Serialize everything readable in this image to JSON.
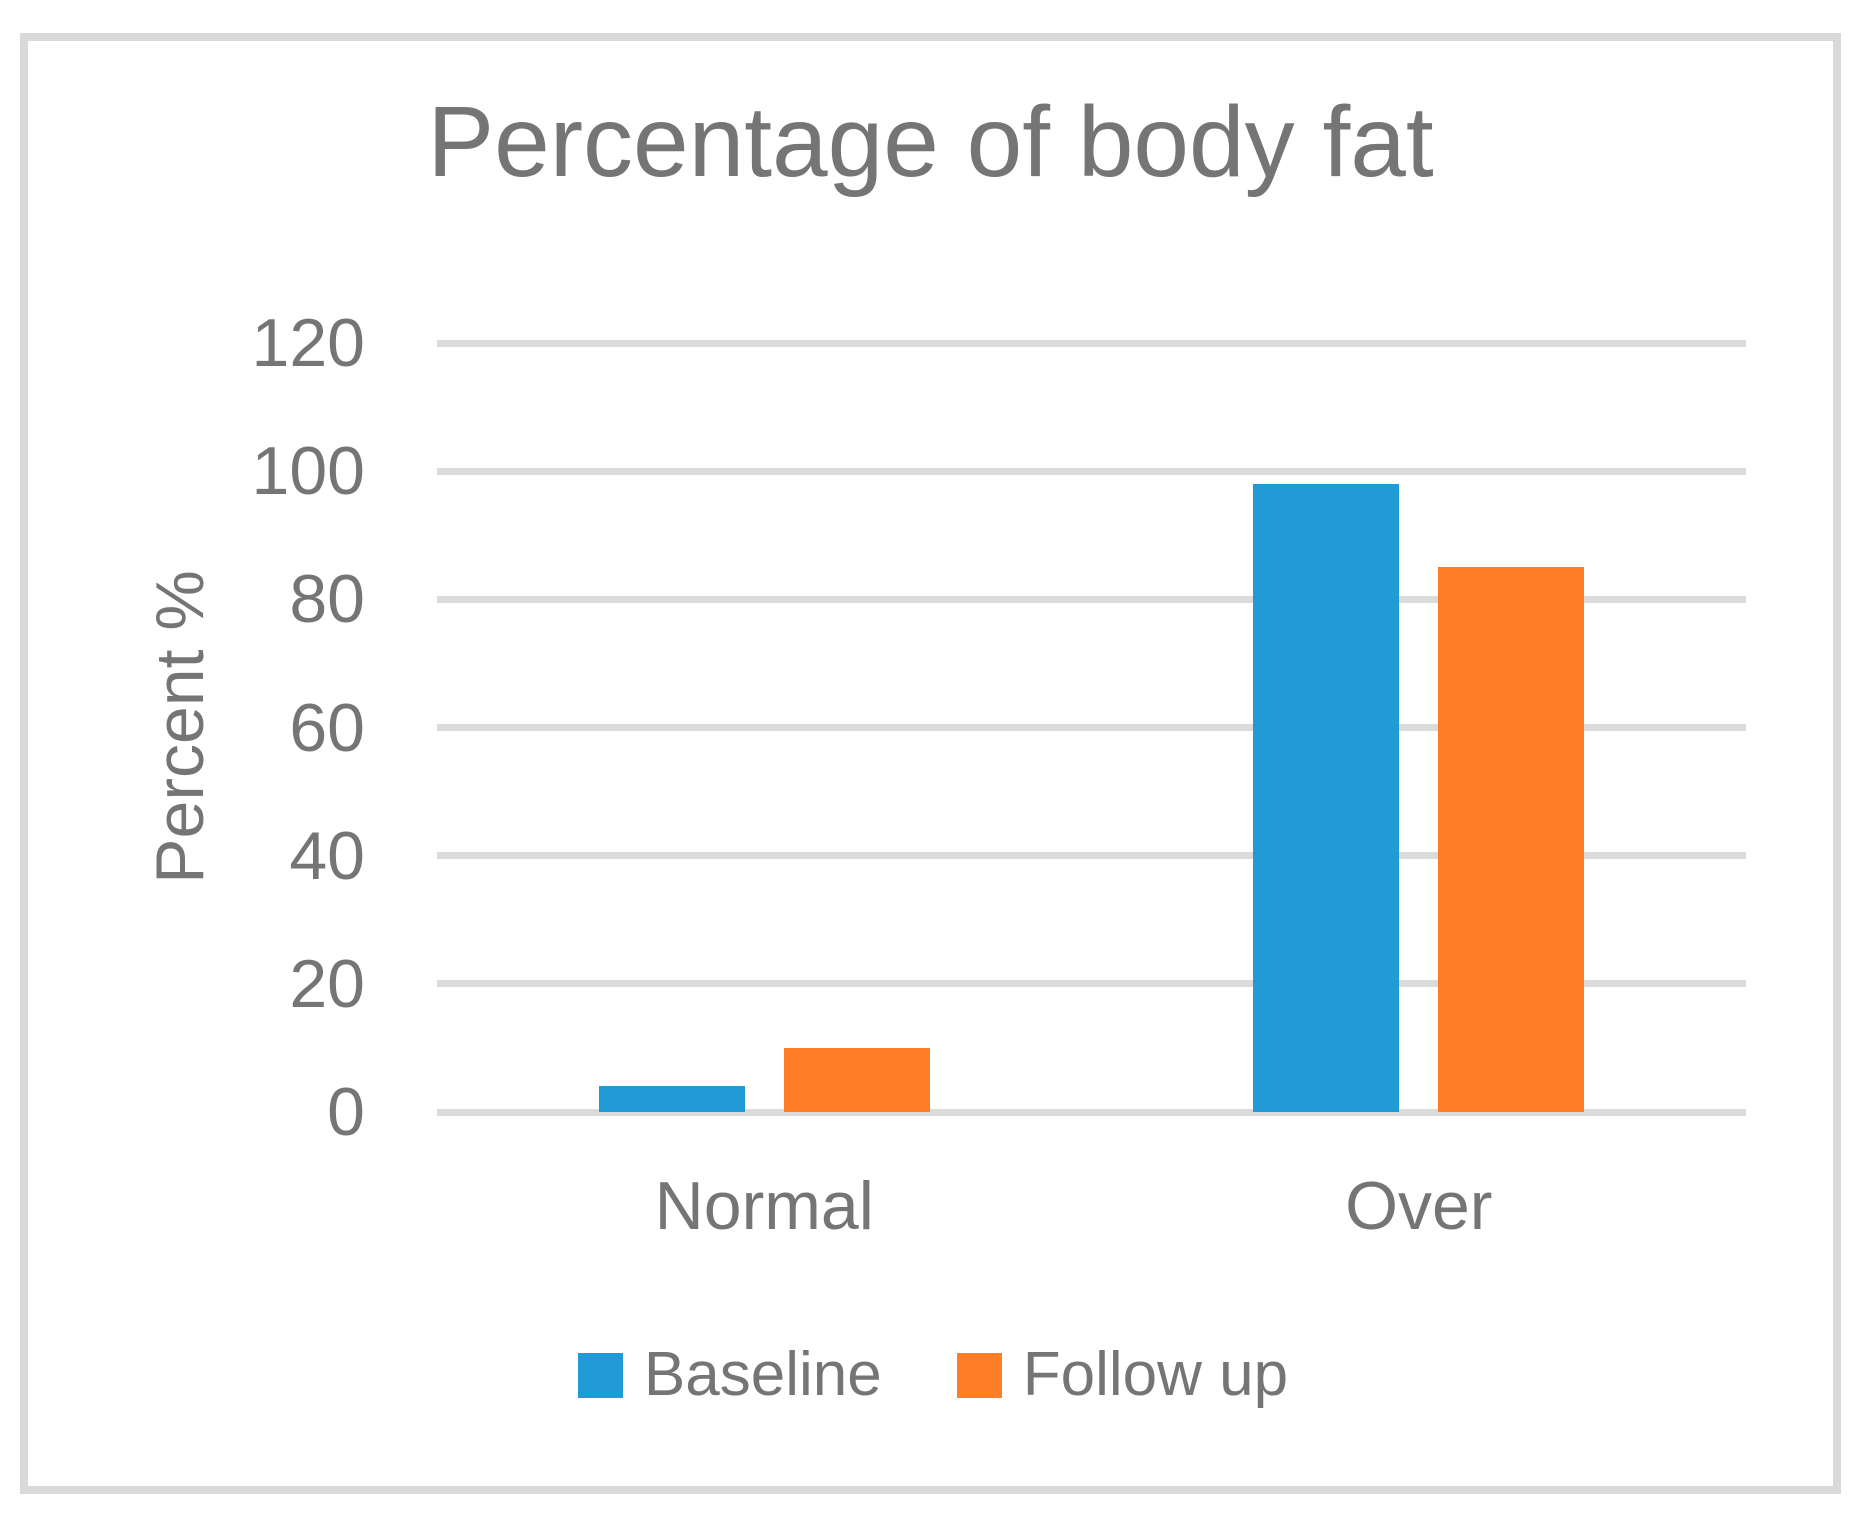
{
  "chart_data": {
    "type": "bar",
    "title": "Percentage of body fat",
    "categories": [
      "Normal",
      "Over"
    ],
    "series": [
      {
        "name": "Baseline",
        "color": "#219AD6",
        "values": [
          4,
          98
        ]
      },
      {
        "name": "Follow up",
        "color": "#FD7E27",
        "values": [
          10,
          85
        ]
      }
    ],
    "xlabel": "",
    "ylabel": "Percent %",
    "ylim": [
      0,
      120
    ],
    "y_ticks": [
      0,
      20,
      40,
      60,
      80,
      100,
      120
    ],
    "grid": "horizontal",
    "legend_position": "bottom",
    "text_color": "#757575",
    "gridline_color": "#DBDBDB",
    "frame_border_color": "#D9D9D9"
  }
}
